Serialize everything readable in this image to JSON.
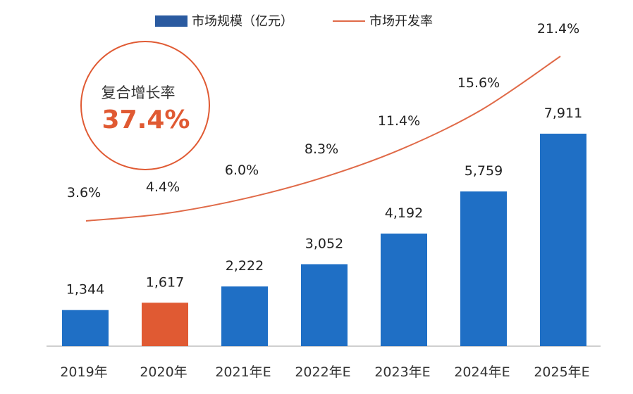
{
  "chart_data": {
    "type": "bar",
    "categories": [
      "2019年",
      "2020年",
      "2021年E",
      "2022年E",
      "2023年E",
      "2024年E",
      "2025年E"
    ],
    "series": [
      {
        "name": "市场规模（亿元）",
        "type": "bar",
        "values": [
          1344,
          1617,
          2222,
          3052,
          4192,
          5759,
          7911
        ],
        "labels": [
          "1,344",
          "1,617",
          "2,222",
          "3,052",
          "4,192",
          "5,759",
          "7,911"
        ],
        "color": "#1f6fc5",
        "highlight_color": "#e05a33",
        "highlight_index": 1
      },
      {
        "name": "市场开发率",
        "type": "line",
        "values": [
          3.6,
          4.4,
          6.0,
          8.3,
          11.4,
          15.6,
          21.4
        ],
        "labels": [
          "3.6%",
          "4.4%",
          "6.0%",
          "8.3%",
          "11.4%",
          "15.6%",
          "21.4%"
        ],
        "color": "#e06a48",
        "unit": "%"
      }
    ],
    "legend": {
      "placement": "top-center",
      "bar_color": "#2a5aa0"
    },
    "annotation": {
      "title": "复合增长率",
      "value": "37.4%",
      "color": "#e05a33"
    },
    "ylim_bar": [
      0,
      8500
    ],
    "ylim_line": [
      0,
      24
    ],
    "grid": false
  }
}
